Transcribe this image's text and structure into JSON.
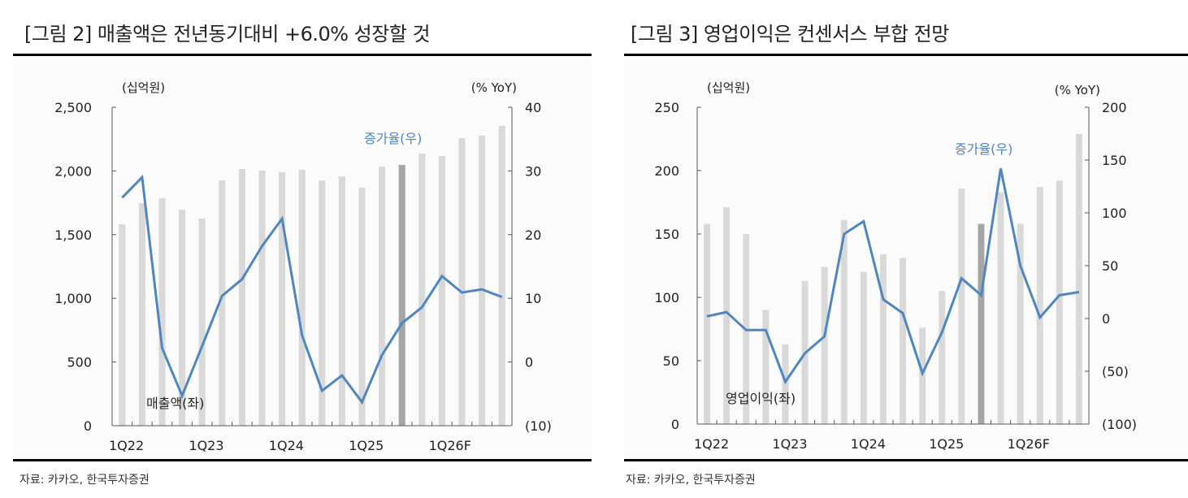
{
  "source_left": "자료: 카카오, 한국투자증권",
  "source_right": "자료: 카카오, 한국투자증권",
  "colors": {
    "bar": "#d9d9d9",
    "bar_highlight": "#a6a6a6",
    "line": "#4f86c0",
    "axis": "#595959"
  },
  "chart_data": [
    {
      "type": "bar+line",
      "title": "[그림 2] 매출액은 전년동기대비 +6.0% 성장할 것",
      "ylabel_left": "(십억원)",
      "ylabel_right": "(% YoY)",
      "ylim_left": [
        0,
        2500
      ],
      "ylim_right": [
        -10,
        40
      ],
      "yticks_left": [
        "0",
        "500",
        "1,000",
        "1,500",
        "2,000",
        "2,500"
      ],
      "yticks_right": [
        "(10)",
        "0",
        "10",
        "20",
        "30",
        "40"
      ],
      "xtick_labels": [
        "1Q22",
        "1Q23",
        "1Q24",
        "1Q25",
        "1Q26F"
      ],
      "xtick_positions": [
        0,
        4,
        8,
        12,
        16
      ],
      "highlight_index": 14,
      "series": [
        {
          "name": "매출액(좌)",
          "axis": "left",
          "type": "bar",
          "values": [
            1582,
            1747,
            1786,
            1696,
            1626,
            1926,
            2015,
            2003,
            1990,
            2009,
            1926,
            1958,
            1869,
            2034,
            2047,
            2136,
            2117,
            2258,
            2277,
            2353
          ]
        },
        {
          "name": "증가율(우)",
          "axis": "right",
          "type": "line",
          "values": [
            25.8,
            29.0,
            2.2,
            -5.3,
            2.5,
            10.4,
            13.0,
            18.2,
            22.5,
            4.2,
            -4.5,
            -2.1,
            -6.3,
            1.1,
            6.1,
            8.6,
            13.5,
            10.9,
            11.4,
            10.2
          ]
        }
      ],
      "annotations": [
        {
          "text": "매출액(좌)",
          "series": 0
        },
        {
          "text": "증가율(우)",
          "series": 1
        }
      ]
    },
    {
      "type": "bar+line",
      "title": "[그림 3] 영업이익은 컨센서스 부합 전망",
      "ylabel_left": "(십억원)",
      "ylabel_right": "(% YoY)",
      "ylim_left": [
        0,
        250
      ],
      "ylim_right": [
        -100,
        200
      ],
      "yticks_left": [
        "0",
        "50",
        "100",
        "150",
        "200",
        "250"
      ],
      "yticks_right": [
        "(100)",
        "(50)",
        "0",
        "50",
        "100",
        "150",
        "200"
      ],
      "xtick_labels": [
        "1Q22",
        "1Q23",
        "1Q24",
        "1Q25",
        "1Q26F"
      ],
      "xtick_positions": [
        0,
        4,
        8,
        12,
        16
      ],
      "highlight_index": 14,
      "series": [
        {
          "name": "영업이익(좌)",
          "axis": "left",
          "type": "bar",
          "values": [
            158,
            171,
            150,
            90,
            63,
            113,
            124,
            161,
            120,
            134,
            131,
            76,
            105,
            186,
            158,
            183,
            158,
            187,
            192,
            229
          ]
        },
        {
          "name": "증가율(우)",
          "axis": "right",
          "type": "line",
          "values": [
            2,
            6,
            -11,
            -11,
            -60,
            -33,
            -17,
            80,
            92,
            18,
            5,
            -52,
            -13,
            38,
            22,
            142,
            50,
            1,
            22,
            25
          ]
        }
      ],
      "annotations": [
        {
          "text": "영업이익(좌)",
          "series": 0
        },
        {
          "text": "증가율(우)",
          "series": 1
        }
      ]
    }
  ]
}
